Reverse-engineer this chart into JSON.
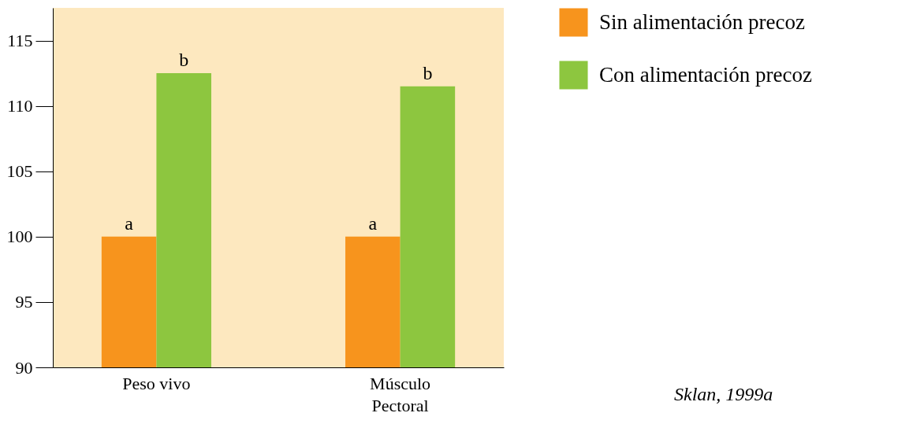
{
  "chart_data": {
    "type": "bar",
    "categories": [
      "Peso vivo",
      "Músculo Pectoral"
    ],
    "series": [
      {
        "name": "Sin alimentación precoz",
        "color": "#f7941d",
        "values": [
          100,
          100
        ]
      },
      {
        "name": "Con alimentación precoz",
        "color": "#8dc63f",
        "values": [
          112.5,
          111.5
        ]
      }
    ],
    "ylim": [
      90,
      117.5
    ],
    "yticks": [
      90,
      95,
      100,
      105,
      110,
      115
    ],
    "grid": false,
    "legend": "right",
    "annotations": [
      {
        "text": "a",
        "x": "Peso vivo",
        "y": 100
      },
      {
        "text": "b",
        "x": "Peso vivo",
        "y": 112.5
      },
      {
        "text": "a",
        "x": "Músculo Pectoral",
        "y": 100
      },
      {
        "text": "b",
        "x": "Músculo Pectoral",
        "y": 111.5
      },
      "Sklan, 1999a"
    ]
  }
}
